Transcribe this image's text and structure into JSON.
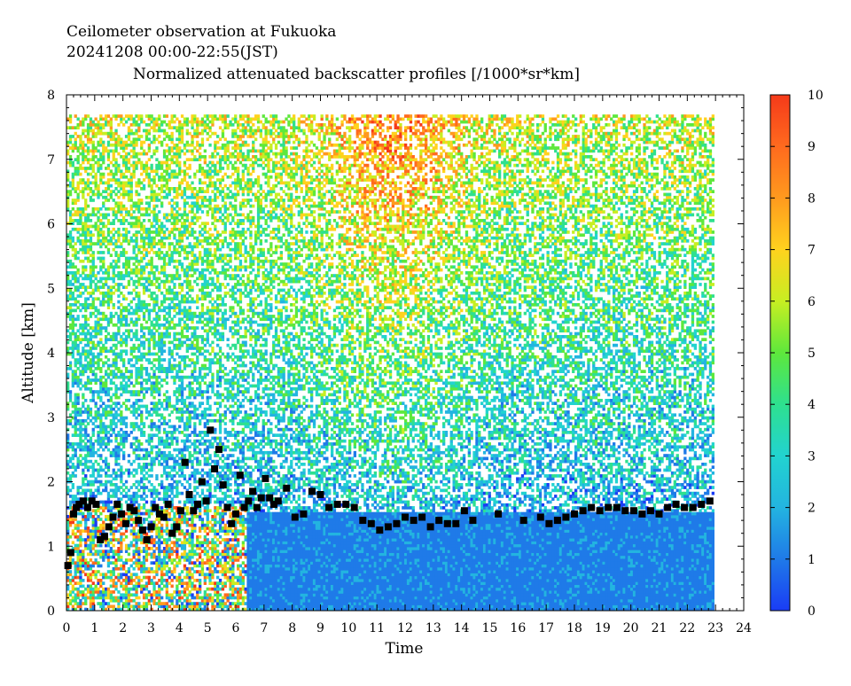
{
  "chart_data": {
    "type": "heatmap",
    "title_lines": [
      "Ceilometer observation at Fukuoka",
      "20241208  00:00-22:55(JST)"
    ],
    "subtitle": "Normalized attenuated backscatter profiles [/1000*sr*km]",
    "xlabel": "Time",
    "ylabel": "Altitude [km]",
    "xlim": [
      0,
      24
    ],
    "ylim": [
      0,
      8
    ],
    "x_ticks": [
      "0",
      "1",
      "2",
      "3",
      "4",
      "5",
      "6",
      "7",
      "8",
      "9",
      "10",
      "11",
      "12",
      "13",
      "14",
      "15",
      "16",
      "17",
      "18",
      "19",
      "20",
      "21",
      "22",
      "23",
      "24"
    ],
    "y_ticks": [
      "0",
      "1",
      "2",
      "3",
      "4",
      "5",
      "6",
      "7",
      "8"
    ],
    "data_extent": {
      "time_end": 22.92,
      "altitude_top": 7.65
    },
    "colorbar": {
      "range": [
        0,
        10
      ],
      "ticks": [
        "0",
        "1",
        "2",
        "3",
        "4",
        "5",
        "6",
        "7",
        "8",
        "9",
        "10"
      ],
      "colors": [
        "#1a3cf5",
        "#1f7ae8",
        "#23b4e0",
        "#22d3d0",
        "#2ee08f",
        "#5ee83c",
        "#c7ee22",
        "#ffd21e",
        "#ff9a1e",
        "#ff6a1e",
        "#f53a1a"
      ]
    },
    "backscatter_pattern": {
      "low_layer": [
        {
          "t0": 0.0,
          "t1": 6.3,
          "top_km": 1.6,
          "value": "mixed 1-10"
        },
        {
          "t0": 6.3,
          "t1": 22.92,
          "top_km": 1.5,
          "value": "approx 0.8-1.2"
        }
      ],
      "noise_above": "values 1-10 increasing with altitude, maximum between 10-13 h"
    },
    "series": [
      {
        "marker": "black-square",
        "points": [
          [
            0.05,
            0.7
          ],
          [
            0.15,
            0.9
          ],
          [
            0.25,
            1.5
          ],
          [
            0.35,
            1.6
          ],
          [
            0.45,
            1.65
          ],
          [
            0.6,
            1.7
          ],
          [
            0.75,
            1.6
          ],
          [
            0.9,
            1.7
          ],
          [
            1.05,
            1.65
          ],
          [
            1.2,
            1.1
          ],
          [
            1.35,
            1.15
          ],
          [
            1.5,
            1.3
          ],
          [
            1.65,
            1.45
          ],
          [
            1.8,
            1.65
          ],
          [
            1.95,
            1.5
          ],
          [
            2.1,
            1.35
          ],
          [
            2.25,
            1.6
          ],
          [
            2.4,
            1.55
          ],
          [
            2.55,
            1.4
          ],
          [
            2.7,
            1.25
          ],
          [
            2.85,
            1.1
          ],
          [
            3.0,
            1.3
          ],
          [
            3.15,
            1.6
          ],
          [
            3.3,
            1.5
          ],
          [
            3.45,
            1.45
          ],
          [
            3.6,
            1.65
          ],
          [
            3.75,
            1.2
          ],
          [
            3.9,
            1.3
          ],
          [
            4.05,
            1.55
          ],
          [
            4.2,
            2.3
          ],
          [
            4.35,
            1.8
          ],
          [
            4.5,
            1.55
          ],
          [
            4.65,
            1.65
          ],
          [
            4.8,
            2.0
          ],
          [
            4.95,
            1.7
          ],
          [
            5.1,
            2.8
          ],
          [
            5.25,
            2.2
          ],
          [
            5.4,
            2.5
          ],
          [
            5.55,
            1.95
          ],
          [
            5.7,
            1.6
          ],
          [
            5.85,
            1.35
          ],
          [
            6.0,
            1.5
          ],
          [
            6.15,
            2.1
          ],
          [
            6.3,
            1.6
          ],
          [
            6.45,
            1.7
          ],
          [
            6.6,
            1.85
          ],
          [
            6.75,
            1.6
          ],
          [
            6.9,
            1.75
          ],
          [
            7.05,
            2.05
          ],
          [
            7.2,
            1.75
          ],
          [
            7.35,
            1.65
          ],
          [
            7.5,
            1.7
          ],
          [
            7.8,
            1.9
          ],
          [
            8.1,
            1.45
          ],
          [
            8.4,
            1.5
          ],
          [
            8.7,
            1.85
          ],
          [
            9.0,
            1.8
          ],
          [
            9.3,
            1.6
          ],
          [
            9.6,
            1.65
          ],
          [
            9.9,
            1.65
          ],
          [
            10.2,
            1.6
          ],
          [
            10.5,
            1.4
          ],
          [
            10.8,
            1.35
          ],
          [
            11.1,
            1.25
          ],
          [
            11.4,
            1.3
          ],
          [
            11.7,
            1.35
          ],
          [
            12.0,
            1.45
          ],
          [
            12.3,
            1.4
          ],
          [
            12.6,
            1.45
          ],
          [
            12.9,
            1.3
          ],
          [
            13.2,
            1.4
          ],
          [
            13.5,
            1.35
          ],
          [
            13.8,
            1.35
          ],
          [
            14.1,
            1.55
          ],
          [
            14.4,
            1.4
          ],
          [
            15.3,
            1.5
          ],
          [
            16.2,
            1.4
          ],
          [
            16.8,
            1.45
          ],
          [
            17.1,
            1.35
          ],
          [
            17.4,
            1.4
          ],
          [
            17.7,
            1.45
          ],
          [
            18.0,
            1.5
          ],
          [
            18.3,
            1.55
          ],
          [
            18.6,
            1.6
          ],
          [
            18.9,
            1.55
          ],
          [
            19.2,
            1.6
          ],
          [
            19.5,
            1.6
          ],
          [
            19.8,
            1.55
          ],
          [
            20.1,
            1.55
          ],
          [
            20.4,
            1.5
          ],
          [
            20.7,
            1.55
          ],
          [
            21.0,
            1.5
          ],
          [
            21.3,
            1.6
          ],
          [
            21.6,
            1.65
          ],
          [
            21.9,
            1.6
          ],
          [
            22.2,
            1.6
          ],
          [
            22.5,
            1.65
          ],
          [
            22.8,
            1.7
          ]
        ]
      }
    ]
  }
}
